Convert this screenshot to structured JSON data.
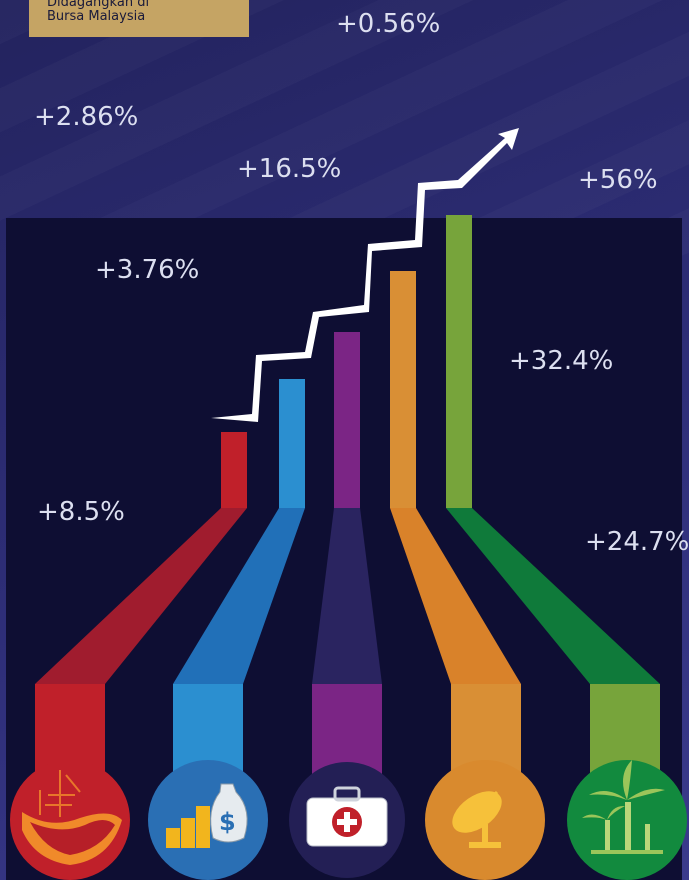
{
  "tag": {
    "line1": "Didagangkan di",
    "line2": "Bursa Malaysia"
  },
  "labels": [
    {
      "text": "+0.56%"
    },
    {
      "text": "+2.86%"
    },
    {
      "text": "+16.5%"
    },
    {
      "text": "+56%"
    },
    {
      "text": "+3.76%"
    },
    {
      "text": "+32.4%"
    },
    {
      "text": "+8.5%"
    },
    {
      "text": "+24.7%"
    }
  ],
  "chart_data": {
    "type": "bar",
    "categories": [
      "oil-and-gas",
      "finance",
      "healthcare",
      "telecommunications",
      "plantation"
    ],
    "values": [
      1,
      2,
      3,
      4,
      5
    ],
    "colors": [
      "#c0202a",
      "#2b8fd0",
      "#7b2585",
      "#d98f35",
      "#77a43b"
    ],
    "stream_colors": [
      "#a01c2e",
      "#2170b8",
      "#2a2460",
      "#d9822a",
      "#0f7a3a"
    ],
    "arrow_color": "#ffffff"
  },
  "icons": [
    {
      "name": "oil-rig-icon",
      "bg": "#c0202a"
    },
    {
      "name": "money-bag-icon",
      "bg": "#2a6fb4"
    },
    {
      "name": "first-aid-kit-icon",
      "bg": "#231f55"
    },
    {
      "name": "satellite-dish-icon",
      "bg": "#d98a2e"
    },
    {
      "name": "palm-tree-icon",
      "bg": "#128a3e"
    }
  ]
}
